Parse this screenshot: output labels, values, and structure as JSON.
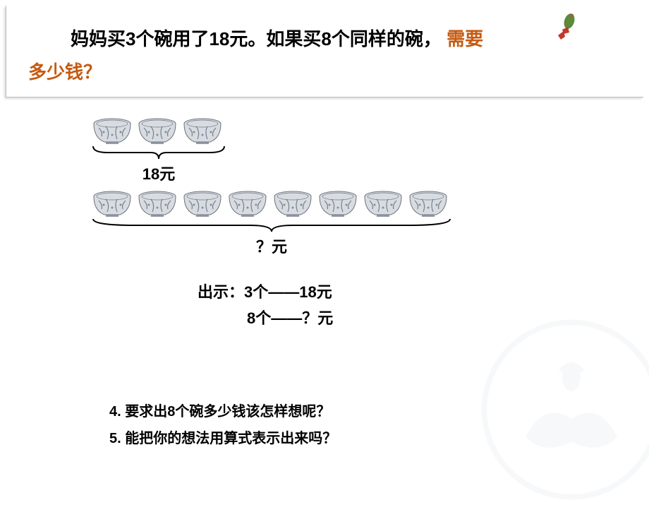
{
  "question": {
    "part1": "妈妈买3个碗用了18元。如果买8个同样的碗，",
    "highlight": "需要多少钱？"
  },
  "bowls": {
    "row1_count": 3,
    "row1_label": "18元",
    "row2_count": 8,
    "row2_label": "？元",
    "bowl_fill": "#d8dce0",
    "bowl_stroke": "#6b7280",
    "pattern_color": "#4a5a70"
  },
  "bracket": {
    "row1_width": 190,
    "row2_width": 510,
    "height": 22,
    "stroke": "#000000",
    "stroke_width": 2
  },
  "show": {
    "prefix": "出示：",
    "line1": "3个——18元",
    "line2": "8个——？元"
  },
  "bottom": {
    "q4": "4. 要求出8个碗多少钱该怎样想呢？",
    "q5": "5. 能把你的想法用算式表示出来吗？"
  },
  "colors": {
    "highlight": "#c55a11",
    "text": "#000000",
    "watermark": "#b0c4d8",
    "icon_bottle": "#5b8a3a",
    "icon_ribbon": "#c0392b"
  }
}
